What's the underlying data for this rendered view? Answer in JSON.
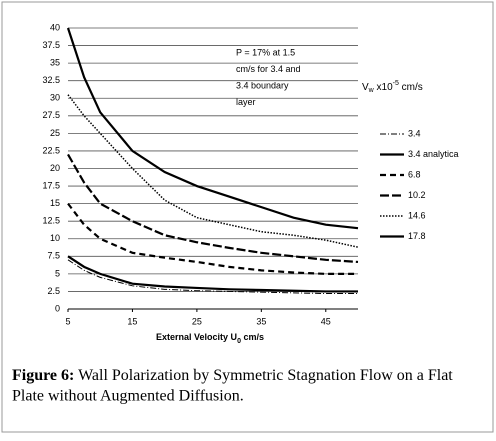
{
  "chart_data": {
    "type": "line",
    "x_label": {
      "text": "External Velocity U",
      "sub": "0",
      "tail": " cm/s"
    },
    "y_label": {
      "text": "V",
      "sub": "w",
      "mid": " x10",
      "sup": "-5",
      "tail": " cm/s"
    },
    "annotation": [
      "P = 17% at 1.5",
      "cm/s for 3.4 and",
      "3.4 boundary",
      "layer"
    ],
    "caption": {
      "label": "Figure 6:",
      "text": " Wall Polarization by Symmetric Stagnation Flow on a Flat",
      "text2": "Plate without Augmented Diffusion."
    },
    "x": [
      5,
      7.5,
      10,
      15,
      20,
      25,
      30,
      35,
      40,
      45,
      50
    ],
    "xlim": [
      5,
      50
    ],
    "xticks": [
      5,
      15,
      25,
      35,
      45
    ],
    "ylim": [
      0,
      40
    ],
    "yticks": [
      0,
      2.5,
      5,
      7.5,
      10,
      12.5,
      15,
      17.5,
      20,
      22.5,
      25,
      27.5,
      30,
      32.5,
      35,
      37.5,
      40
    ],
    "grid": true,
    "series": [
      {
        "name": "3.4",
        "color": "#000000",
        "width": 1,
        "dash": "6 2 1 2",
        "values": [
          7,
          5.5,
          4.5,
          3.3,
          2.8,
          2.6,
          2.5,
          2.4,
          2.3,
          2.2,
          2.2
        ]
      },
      {
        "name": "3.4 analytica",
        "color": "#000000",
        "width": 2.2,
        "dash": "none",
        "values": [
          7.5,
          6,
          5,
          3.6,
          3.2,
          3,
          2.8,
          2.7,
          2.6,
          2.5,
          2.5
        ]
      },
      {
        "name": "6.8",
        "color": "#000000",
        "width": 2.2,
        "dash": "6 4",
        "values": [
          15,
          12,
          10,
          8,
          7.3,
          6.7,
          6,
          5.5,
          5.2,
          5,
          5
        ]
      },
      {
        "name": "10.2",
        "color": "#000000",
        "width": 2.2,
        "dash": "9 3",
        "values": [
          22,
          18,
          15,
          12.5,
          10.5,
          9.5,
          8.7,
          8,
          7.5,
          7,
          6.7
        ]
      },
      {
        "name": "14.6",
        "color": "#000000",
        "width": 1.5,
        "dash": "1.5 1.5",
        "values": [
          30.5,
          27.5,
          25,
          20,
          15.5,
          13,
          12,
          11,
          10.5,
          9.8,
          8.8
        ]
      },
      {
        "name": "17.8",
        "color": "#000000",
        "width": 2.2,
        "dash": "none",
        "values": [
          40,
          33,
          28,
          22.5,
          19.5,
          17.5,
          16,
          14.5,
          13,
          12,
          11.5
        ]
      }
    ]
  }
}
